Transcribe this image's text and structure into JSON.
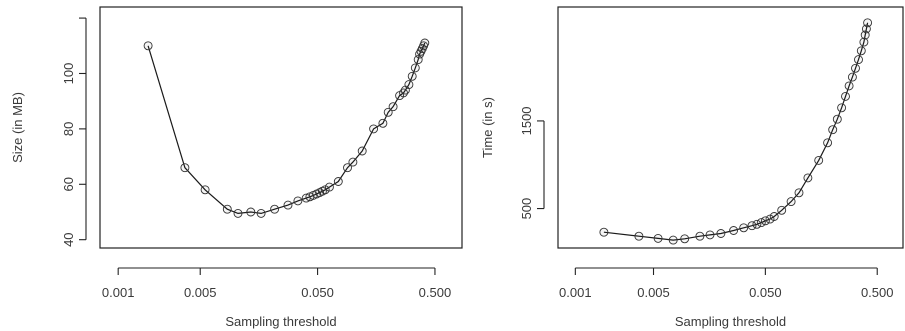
{
  "chart_data": [
    {
      "type": "line",
      "panel": "left",
      "xlabel": "Sampling threshold",
      "ylabel": "Size (in MB)",
      "xscale": "log",
      "xlim": [
        0.0007,
        0.85
      ],
      "ylim": [
        37,
        124
      ],
      "xticks": [
        0.001,
        0.005,
        0.05,
        0.5
      ],
      "xtick_labels": [
        "0.001",
        "0.005",
        "0.050",
        "0.500"
      ],
      "yticks": [
        40,
        60,
        80,
        100,
        120
      ],
      "ytick_labels": [
        "40",
        "60",
        "80",
        "100",
        ""
      ],
      "series": [
        {
          "x": [
            0.0018,
            0.0037,
            0.0055,
            0.0085,
            0.0105,
            0.0135,
            0.0165,
            0.0215,
            0.028,
            0.034,
            0.04,
            0.043,
            0.046,
            0.049,
            0.052,
            0.055,
            0.058,
            0.063,
            0.075,
            0.09,
            0.1,
            0.12,
            0.15,
            0.18,
            0.2,
            0.22,
            0.25,
            0.27,
            0.28,
            0.3,
            0.32,
            0.34,
            0.36,
            0.37,
            0.38,
            0.39,
            0.4,
            0.41
          ],
          "y": [
            110,
            66,
            58,
            51,
            49.5,
            50,
            49.5,
            51,
            52.5,
            54,
            55,
            55.5,
            56,
            56.5,
            57,
            57.5,
            58,
            59,
            61,
            66,
            68,
            72,
            80,
            82,
            86,
            88,
            92,
            93,
            94,
            96,
            99,
            102,
            105,
            107,
            108,
            109,
            110,
            111
          ]
        }
      ]
    },
    {
      "type": "line",
      "panel": "right",
      "xlabel": "Sampling threshold",
      "ylabel": "Time (in s)",
      "xscale": "log",
      "xlim": [
        0.0007,
        0.85
      ],
      "ylim": [
        50,
        2800
      ],
      "xticks": [
        0.001,
        0.005,
        0.05,
        0.5
      ],
      "xtick_labels": [
        "0.001",
        "0.005",
        "0.050",
        "0.500"
      ],
      "yticks": [
        500,
        1500
      ],
      "ytick_labels": [
        "500",
        "1500"
      ],
      "series": [
        {
          "x": [
            0.0018,
            0.0037,
            0.0055,
            0.0075,
            0.0095,
            0.013,
            0.016,
            0.02,
            0.026,
            0.032,
            0.038,
            0.042,
            0.046,
            0.05,
            0.055,
            0.06,
            0.07,
            0.085,
            0.1,
            0.12,
            0.15,
            0.18,
            0.2,
            0.22,
            0.24,
            0.26,
            0.28,
            0.3,
            0.32,
            0.34,
            0.36,
            0.38,
            0.39,
            0.4,
            0.41
          ],
          "y": [
            230,
            185,
            160,
            140,
            155,
            185,
            200,
            215,
            250,
            280,
            305,
            320,
            340,
            360,
            380,
            410,
            480,
            580,
            680,
            850,
            1050,
            1250,
            1400,
            1520,
            1650,
            1780,
            1900,
            2000,
            2100,
            2200,
            2300,
            2400,
            2480,
            2550,
            2620
          ]
        }
      ]
    }
  ]
}
